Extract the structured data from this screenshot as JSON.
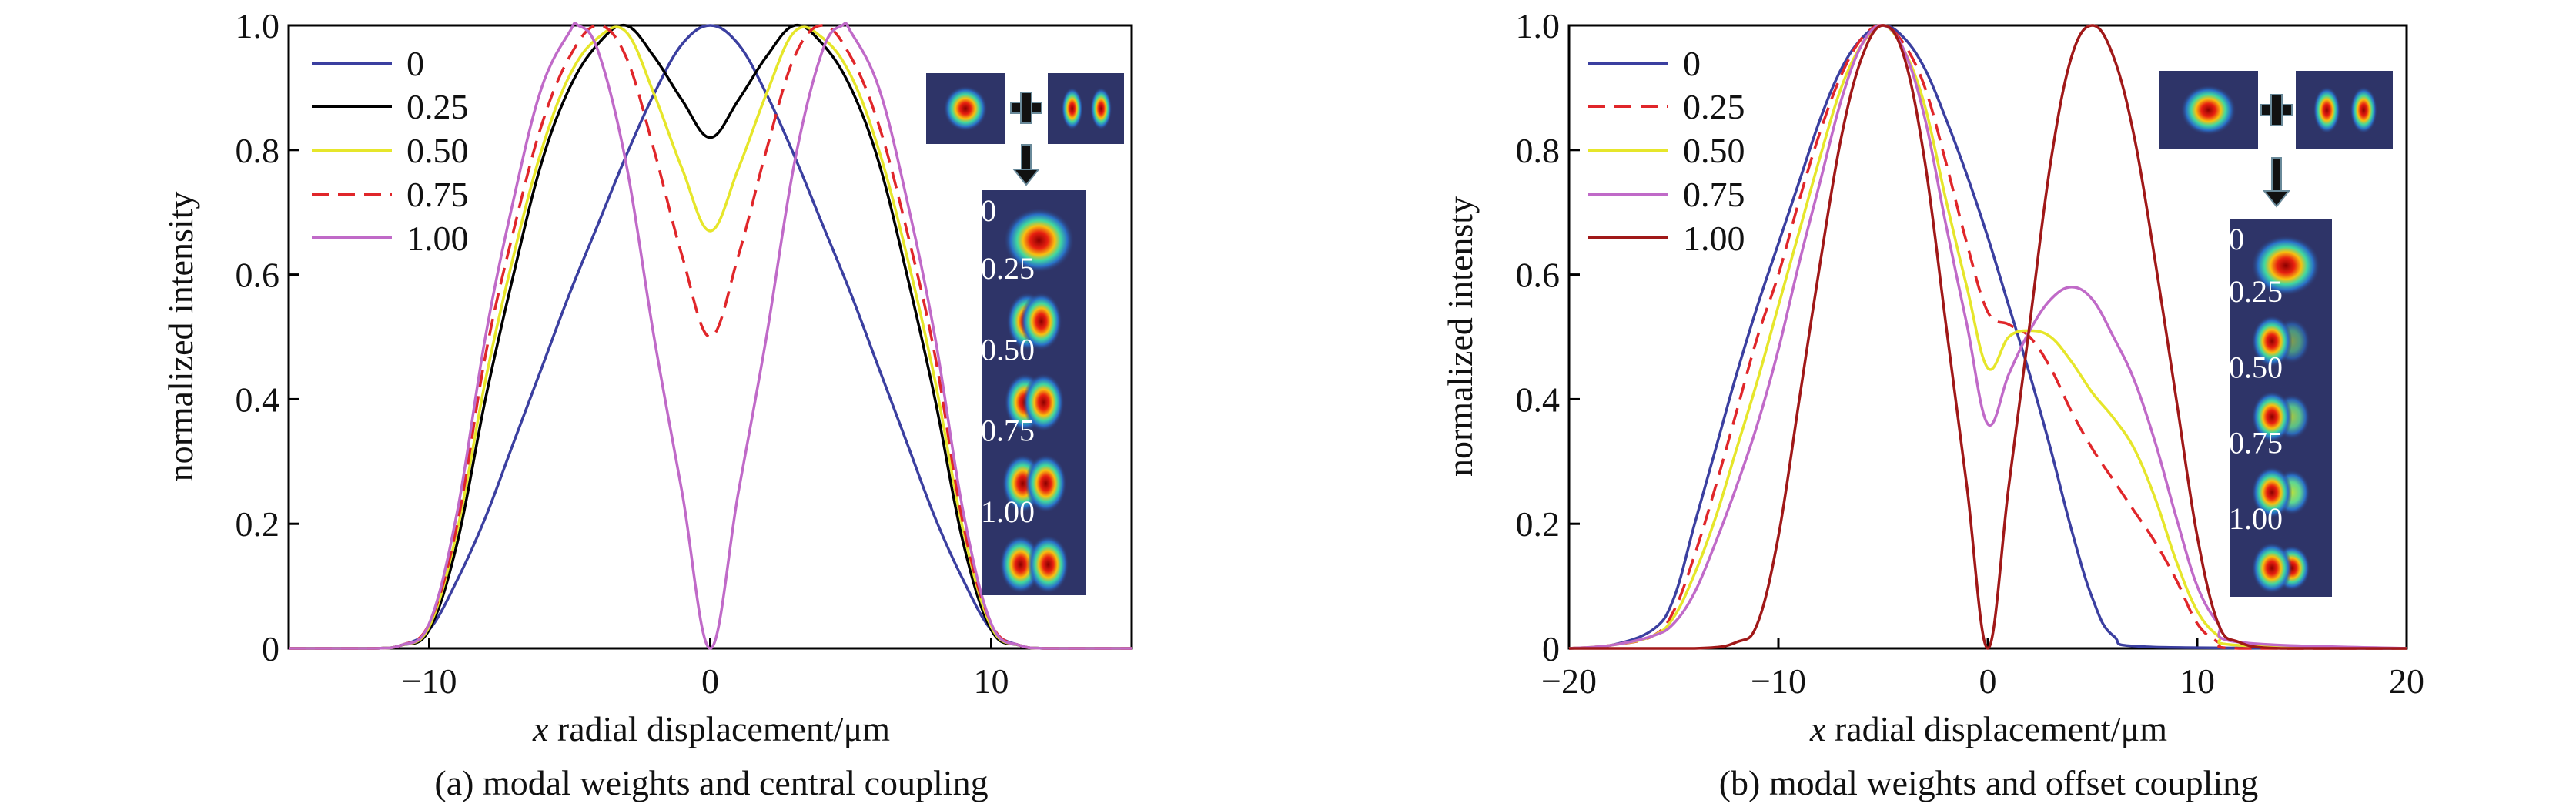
{
  "chart_data": [
    {
      "type": "line",
      "title": "(a) modal weights and central coupling",
      "xlabel_italic": "x",
      "xlabel": " radial displacement/μm",
      "ylabel": "normalized intensity",
      "xlim": [
        -15,
        15
      ],
      "ylim": [
        0,
        1.0
      ],
      "xticks": [
        -10,
        0,
        10
      ],
      "xtick_labels": [
        "−10",
        "0",
        "10"
      ],
      "yticks": [
        0,
        0.2,
        0.4,
        0.6,
        0.8,
        1.0
      ],
      "ytick_labels": [
        "0",
        "0.2",
        "0.4",
        "0.6",
        "0.8",
        "1.0"
      ],
      "legend_position": "top-left",
      "inset_labels": [
        "0",
        "0.25",
        "0.50",
        "0.75",
        "1.00"
      ],
      "series": [
        {
          "name": "0",
          "color": "#3b3fa0",
          "dash": "solid",
          "x": [
            -15,
            -12,
            -11,
            -10,
            -9,
            -8,
            -7,
            -6,
            -5,
            -4,
            -3,
            -2,
            -1,
            0,
            1,
            2,
            3,
            4,
            5,
            6,
            7,
            8,
            9,
            10,
            11,
            12,
            15
          ],
          "y": [
            0,
            0,
            0.005,
            0.03,
            0.11,
            0.21,
            0.33,
            0.45,
            0.57,
            0.68,
            0.79,
            0.89,
            0.97,
            1.0,
            0.97,
            0.89,
            0.79,
            0.68,
            0.57,
            0.45,
            0.33,
            0.21,
            0.11,
            0.03,
            0.005,
            0,
            0
          ]
        },
        {
          "name": "0.25",
          "color": "#000000",
          "dash": "solid",
          "x": [
            -15,
            -12,
            -11,
            -10,
            -9,
            -8,
            -7,
            -6,
            -5,
            -4,
            -3,
            -2,
            -1,
            0,
            1,
            2,
            3,
            4,
            5,
            6,
            7,
            8,
            9,
            10,
            11,
            12,
            15
          ],
          "y": [
            0,
            0,
            0.005,
            0.03,
            0.17,
            0.4,
            0.6,
            0.78,
            0.9,
            0.97,
            1.0,
            0.95,
            0.88,
            0.82,
            0.88,
            0.95,
            1.0,
            0.97,
            0.9,
            0.78,
            0.6,
            0.4,
            0.17,
            0.03,
            0.005,
            0,
            0
          ]
        },
        {
          "name": "0.50",
          "color": "#e6e62a",
          "dash": "solid",
          "x": [
            -15,
            -12,
            -11,
            -10,
            -9,
            -8,
            -7,
            -6,
            -5,
            -4,
            -3,
            -2,
            -1,
            0,
            1,
            2,
            3,
            4,
            5,
            6,
            7,
            8,
            9,
            10,
            11,
            12,
            15
          ],
          "y": [
            0,
            0,
            0.005,
            0.035,
            0.19,
            0.43,
            0.63,
            0.8,
            0.92,
            0.98,
            0.99,
            0.89,
            0.77,
            0.67,
            0.77,
            0.89,
            0.99,
            0.98,
            0.92,
            0.8,
            0.63,
            0.43,
            0.19,
            0.035,
            0.005,
            0,
            0
          ]
        },
        {
          "name": "0.75",
          "color": "#e0262a",
          "dash": "dashed",
          "x": [
            -15,
            -12,
            -11,
            -10,
            -9,
            -8,
            -7,
            -6,
            -5,
            -4,
            -3,
            -2,
            -1,
            0,
            1,
            2,
            3,
            4,
            5,
            6,
            7,
            8,
            9,
            10,
            11,
            12,
            15
          ],
          "y": [
            0,
            0,
            0.005,
            0.04,
            0.2,
            0.47,
            0.67,
            0.84,
            0.95,
            1.0,
            0.95,
            0.8,
            0.63,
            0.5,
            0.63,
            0.8,
            0.95,
            1.0,
            0.95,
            0.84,
            0.67,
            0.47,
            0.2,
            0.04,
            0.005,
            0,
            0
          ]
        },
        {
          "name": "1.00",
          "color": "#c06ac8",
          "dash": "solid",
          "x": [
            -15,
            -12,
            -11,
            -10,
            -9,
            -8,
            -7,
            -6,
            -5,
            -4.7,
            -4,
            -3,
            -2,
            -1,
            0,
            1,
            2,
            3,
            4,
            4.7,
            5,
            6,
            7,
            8,
            9,
            10,
            11,
            12,
            15
          ],
          "y": [
            0,
            0,
            0.005,
            0.04,
            0.22,
            0.5,
            0.72,
            0.9,
            0.99,
            1.0,
            0.96,
            0.78,
            0.5,
            0.25,
            0,
            0.25,
            0.5,
            0.78,
            0.96,
            1.0,
            0.99,
            0.9,
            0.72,
            0.5,
            0.22,
            0.04,
            0.005,
            0,
            0
          ]
        }
      ]
    },
    {
      "type": "line",
      "title": "(b) modal weights and offset coupling",
      "xlabel_italic": "x",
      "xlabel": " radial displacement/μm",
      "ylabel": "normalized intensty",
      "xlim": [
        -20,
        20
      ],
      "ylim": [
        0,
        1.0
      ],
      "xticks": [
        -20,
        -10,
        0,
        10,
        20
      ],
      "xtick_labels": [
        "−20",
        "−10",
        "0",
        "10",
        "20"
      ],
      "yticks": [
        0,
        0.2,
        0.4,
        0.6,
        0.8,
        1.0
      ],
      "ytick_labels": [
        "0",
        "0.2",
        "0.4",
        "0.6",
        "0.8",
        "1.0"
      ],
      "legend_position": "top-left",
      "inset_labels": [
        "0",
        "0.25",
        "0.50",
        "0.75",
        "1.00"
      ],
      "series": [
        {
          "name": "0",
          "color": "#3b3fa0",
          "dash": "solid",
          "x": [
            -20,
            -18,
            -16,
            -15,
            -14,
            -13,
            -12,
            -11,
            -10,
            -9,
            -8,
            -7,
            -6,
            -5,
            -4,
            -3,
            -2,
            -1,
            0,
            1,
            2,
            3,
            4,
            5,
            6,
            8,
            20
          ],
          "y": [
            0,
            0.005,
            0.03,
            0.08,
            0.2,
            0.32,
            0.44,
            0.55,
            0.65,
            0.75,
            0.85,
            0.93,
            0.98,
            1.0,
            0.98,
            0.93,
            0.85,
            0.76,
            0.66,
            0.55,
            0.44,
            0.32,
            0.19,
            0.08,
            0.02,
            0.002,
            0
          ]
        },
        {
          "name": "0.25",
          "color": "#e0262a",
          "dash": "dashed",
          "x": [
            -20,
            -18,
            -16,
            -15,
            -14,
            -13,
            -12,
            -11,
            -10,
            -9,
            -8,
            -7,
            -6,
            -5,
            -4,
            -3,
            -2,
            -1,
            0,
            1,
            2,
            3,
            4,
            5,
            6,
            7,
            8,
            9,
            10,
            11,
            12,
            20
          ],
          "y": [
            0,
            0.005,
            0.02,
            0.06,
            0.15,
            0.26,
            0.38,
            0.5,
            0.6,
            0.72,
            0.83,
            0.92,
            0.98,
            1.0,
            0.97,
            0.9,
            0.78,
            0.65,
            0.54,
            0.52,
            0.5,
            0.45,
            0.38,
            0.32,
            0.27,
            0.22,
            0.17,
            0.11,
            0.04,
            0.01,
            0,
            0
          ]
        },
        {
          "name": "0.50",
          "color": "#e6e62a",
          "dash": "solid",
          "x": [
            -20,
            -18,
            -16,
            -15,
            -14,
            -13,
            -12,
            -11,
            -10,
            -9,
            -8,
            -7,
            -6,
            -5,
            -4,
            -3,
            -2,
            -1,
            0,
            1,
            2,
            3,
            4,
            5,
            6,
            7,
            8,
            9,
            10,
            11,
            12,
            20
          ],
          "y": [
            0,
            0.005,
            0.02,
            0.05,
            0.12,
            0.21,
            0.32,
            0.43,
            0.55,
            0.67,
            0.79,
            0.9,
            0.97,
            1.0,
            0.96,
            0.87,
            0.72,
            0.58,
            0.45,
            0.5,
            0.51,
            0.5,
            0.46,
            0.41,
            0.37,
            0.32,
            0.24,
            0.14,
            0.06,
            0.02,
            0.005,
            0
          ]
        },
        {
          "name": "0.75",
          "color": "#c06ac8",
          "dash": "solid",
          "x": [
            -20,
            -18,
            -16,
            -15,
            -14,
            -13,
            -12,
            -11,
            -10,
            -9,
            -8,
            -7,
            -6,
            -5,
            -4,
            -3,
            -2,
            -1,
            0,
            1,
            2,
            3,
            4,
            5,
            6,
            7,
            8,
            9,
            10,
            11,
            12,
            20
          ],
          "y": [
            0,
            0.005,
            0.02,
            0.04,
            0.09,
            0.17,
            0.26,
            0.36,
            0.48,
            0.62,
            0.75,
            0.88,
            0.97,
            1.0,
            0.96,
            0.85,
            0.68,
            0.52,
            0.36,
            0.44,
            0.51,
            0.56,
            0.58,
            0.56,
            0.5,
            0.43,
            0.33,
            0.21,
            0.1,
            0.04,
            0.01,
            0
          ]
        },
        {
          "name": "1.00",
          "color": "#a01818",
          "dash": "solid",
          "x": [
            -20,
            -14,
            -12,
            -11,
            -10,
            -9,
            -8,
            -7,
            -6,
            -5,
            -4,
            -3,
            -2,
            -1,
            0,
            1,
            2,
            3,
            4,
            5,
            6,
            7,
            8,
            9,
            10,
            11,
            12,
            14,
            20
          ],
          "y": [
            0,
            0,
            0.01,
            0.04,
            0.18,
            0.4,
            0.62,
            0.82,
            0.95,
            1.0,
            0.95,
            0.78,
            0.52,
            0.26,
            0,
            0.26,
            0.52,
            0.78,
            0.95,
            1.0,
            0.95,
            0.82,
            0.62,
            0.4,
            0.18,
            0.04,
            0.01,
            0,
            0
          ]
        }
      ]
    }
  ]
}
